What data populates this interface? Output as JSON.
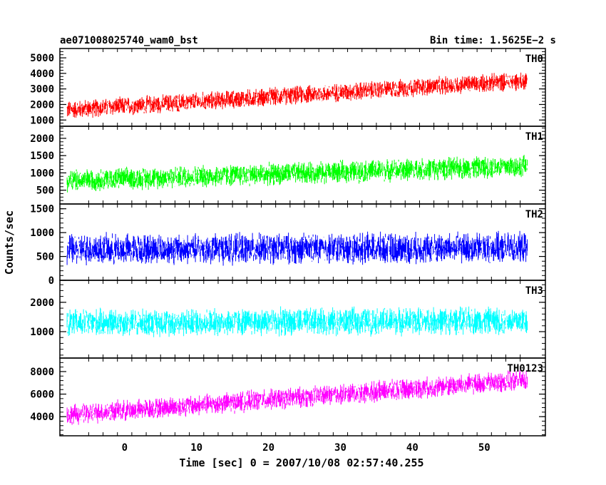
{
  "header": {
    "left_title": "ae071008025740_wam0_bst",
    "right_title": "Bin time: 1.5625E−2 s"
  },
  "chart_data": {
    "type": "line",
    "xlabel": "Time [sec] 0 = 2007/10/08 02:57:40.255",
    "ylabel": "Counts/sec",
    "xlim": [
      -9,
      58.5
    ],
    "x_start": -8,
    "x_end": 56,
    "x_ticks": [
      0,
      10,
      20,
      30,
      40,
      50
    ],
    "x_tick_labels": [
      "0",
      "10",
      "20",
      "30",
      "40",
      "50"
    ],
    "panels": [
      {
        "name": "TH0",
        "color": "#ff0000",
        "ylim": [
          600,
          5600
        ],
        "y_ticks": [
          1000,
          2000,
          3000,
          4000,
          5000
        ],
        "y_tick_labels": [
          "1000",
          "2000",
          "3000",
          "4000",
          "5000"
        ],
        "trend_start": 1650,
        "trend_end": 3550,
        "spread": 480
      },
      {
        "name": "TH1",
        "color": "#00ff00",
        "ylim": [
          100,
          2350
        ],
        "y_ticks": [
          500,
          1000,
          1500,
          2000
        ],
        "y_tick_labels": [
          "500",
          "1000",
          "1500",
          "2000"
        ],
        "trend_start": 780,
        "trend_end": 1200,
        "spread": 260
      },
      {
        "name": "TH2",
        "color": "#0000ff",
        "ylim": [
          0,
          1600
        ],
        "y_ticks": [
          0,
          500,
          1000,
          1500
        ],
        "y_tick_labels": [
          "0",
          "500",
          "1000",
          "1500"
        ],
        "trend_start": 650,
        "trend_end": 680,
        "spread": 260
      },
      {
        "name": "TH3",
        "color": "#00ffff",
        "ylim": [
          100,
          2750
        ],
        "y_ticks": [
          1000,
          2000
        ],
        "y_tick_labels": [
          "1000",
          "2000"
        ],
        "trend_start": 1300,
        "trend_end": 1380,
        "spread": 380
      },
      {
        "name": "TH0123",
        "color": "#ff00ff",
        "ylim": [
          2300,
          9200
        ],
        "y_ticks": [
          4000,
          6000,
          8000
        ],
        "y_tick_labels": [
          "4000",
          "6000",
          "8000"
        ],
        "trend_start": 4150,
        "trend_end": 7250,
        "spread": 750
      }
    ]
  }
}
